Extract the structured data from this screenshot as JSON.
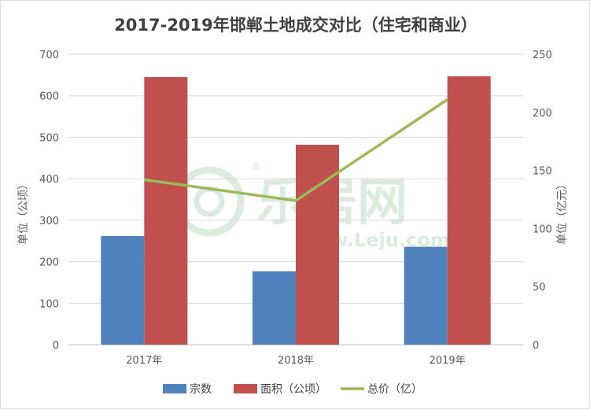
{
  "chart_data": {
    "type": "bar",
    "title": "2017-2019年邯郸土地成交对比（住宅和商业）",
    "categories": [
      "2017年",
      "2018年",
      "2019年"
    ],
    "series": [
      {
        "name": "宗数",
        "type": "bar",
        "axis": "left",
        "color": "#4f81bd",
        "values": [
          262,
          177,
          236
        ]
      },
      {
        "name": "面积（公顷）",
        "type": "bar",
        "axis": "left",
        "color": "#c0504d",
        "values": [
          645,
          482,
          647
        ]
      },
      {
        "name": "总价（亿）",
        "type": "line",
        "axis": "right",
        "color": "#9bbb59",
        "values": [
          142,
          124,
          211
        ]
      }
    ],
    "ylabel": "单位（公顷）",
    "y2label": "单位（亿元）",
    "ylim": [
      0,
      700
    ],
    "yticks": [
      0,
      100,
      200,
      300,
      400,
      500,
      600,
      700
    ],
    "y2lim": [
      0,
      250
    ],
    "y2ticks": [
      0,
      50,
      100,
      150,
      200,
      250
    ],
    "grid": true,
    "legend": "bottom"
  },
  "watermark": {
    "brand": "乐居网",
    "site": "www.Leju.com",
    "registered": "®"
  }
}
